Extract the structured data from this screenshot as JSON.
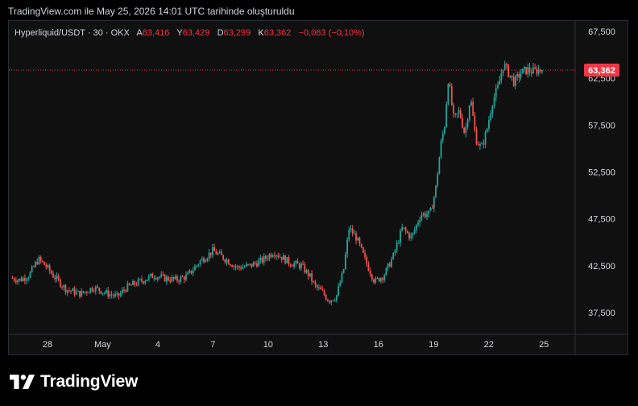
{
  "header": {
    "snapshot_text": "TradingView.com ile May 25, 2026 14:01 UTC tarihinde oluşturuldu"
  },
  "legend": {
    "symbol": "Hyperliquid/USDT · 30 · OKX",
    "open_label": "A",
    "open_value": "63,416",
    "high_label": "Y",
    "high_value": "63,429",
    "low_label": "D",
    "low_value": "63,299",
    "close_label": "K",
    "close_value": "63,362",
    "change": "−0,063 (−0,10%)"
  },
  "price_tag": "63,362",
  "brand": {
    "name": "TradingView"
  },
  "colors": {
    "up": "#26a69a",
    "down": "#ef5350",
    "tag": "#f23645",
    "axis_text": "#d1d4dc",
    "background": "#101010"
  },
  "chart_data": {
    "type": "candlestick",
    "interval": "30 min",
    "exchange": "OKX",
    "x_ticks": [
      "28",
      "May",
      "4",
      "7",
      "10",
      "13",
      "16",
      "19",
      "22",
      "25"
    ],
    "x_tick_day_index": [
      0,
      3,
      6,
      9,
      12,
      15,
      18,
      21,
      24,
      27
    ],
    "y_ticks": [
      "67,500",
      "62,500",
      "57,500",
      "52,500",
      "47,500",
      "42,500",
      "37,500"
    ],
    "y_tick_values": [
      67.5,
      62.5,
      57.5,
      52.5,
      47.5,
      42.5,
      37.5
    ],
    "ylim": [
      35.2,
      68.6
    ],
    "xlim_days": [
      -2.1,
      28.7
    ],
    "last_price": 63.362,
    "series": [
      {
        "name": "Hyperliquid/USDT",
        "approx_close_path_days": [
          -2.0,
          -1.5,
          -1.0,
          -0.5,
          -0.1,
          0.3,
          1.0,
          1.8,
          2.5,
          3.2,
          3.8,
          4.3,
          5.0,
          5.8,
          6.3,
          7.0,
          7.6,
          8.3,
          9.0,
          9.7,
          10.3,
          11.0,
          11.7,
          12.3,
          13.2,
          13.8,
          14.3,
          14.55,
          14.9,
          15.3,
          15.7,
          16.1,
          16.4,
          16.8,
          17.3,
          17.8,
          18.3,
          18.8,
          19.3,
          19.8,
          20.3,
          20.8,
          21.1,
          21.4,
          21.6,
          21.8,
          22.1,
          22.4,
          22.7,
          23.0,
          23.3,
          23.6,
          23.9,
          24.2,
          24.5,
          24.8,
          25.1,
          25.4,
          25.7,
          26.1,
          26.4,
          26.7,
          26.9
        ],
        "approx_close_path": [
          41.2,
          41.0,
          41.5,
          43.2,
          42.5,
          41.5,
          40.0,
          39.5,
          40.2,
          39.6,
          39.2,
          40.2,
          40.8,
          41.5,
          41.2,
          41.0,
          41.4,
          43.0,
          44.1,
          43.2,
          42.3,
          42.5,
          43.1,
          44.0,
          42.8,
          42.5,
          41.3,
          40.3,
          39.8,
          38.8,
          39.2,
          42.0,
          46.5,
          45.5,
          43.0,
          40.8,
          41.5,
          43.5,
          46.5,
          45.5,
          48.0,
          48.0,
          50.5,
          55.5,
          57.5,
          62.5,
          58.0,
          59.0,
          56.5,
          60.5,
          56.0,
          55.0,
          57.0,
          60.0,
          61.5,
          64.0,
          63.0,
          62.0,
          63.0,
          63.4,
          63.2,
          63.4,
          63.362
        ]
      }
    ]
  }
}
